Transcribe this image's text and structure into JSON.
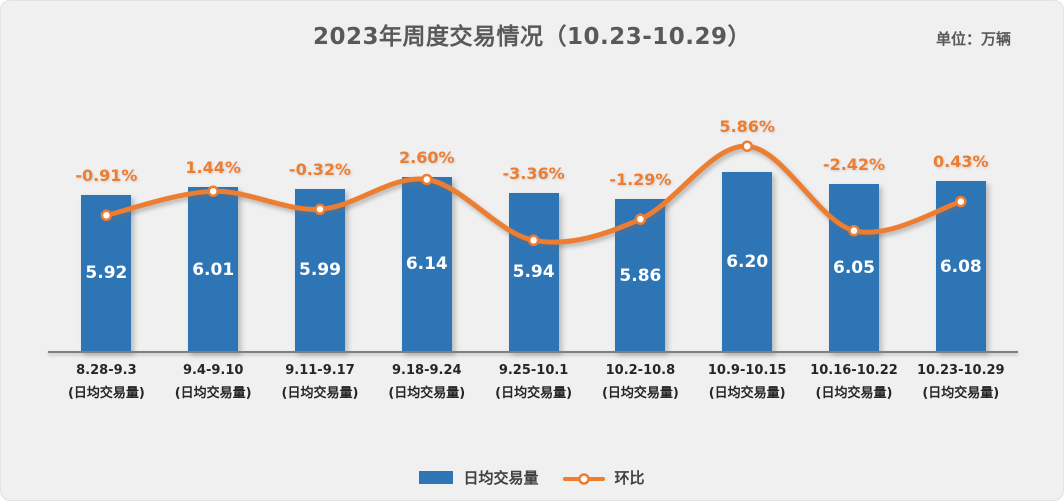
{
  "title": "2023年周度交易情况（10.23-10.29）",
  "unit_label": "单位：万辆",
  "colors": {
    "background": "#F0F0F1",
    "bar": "#2E75B6",
    "line": "#ED7D31",
    "percent_label": "#ED7D31",
    "bar_value_label": "#FFFFFF",
    "title_text": "#595959",
    "axis_line": "#7F7F7F",
    "tick_text": "#262626"
  },
  "legend": {
    "position": "bottom",
    "items": [
      {
        "label": "日均交易量",
        "marker": "bar"
      },
      {
        "label": "环比",
        "marker": "line-dot"
      }
    ]
  },
  "chart_data": {
    "type": "bar",
    "combo": "bar+line",
    "title": "2023年周度交易情况（10.23-10.29）",
    "unit": "万辆",
    "categories": [
      "8.28-9.3",
      "9.4-9.10",
      "9.11-9.17",
      "9.18-9.24",
      "9.25-10.1",
      "10.2-10.8",
      "10.9-10.15",
      "10.16-10.22",
      "10.23-10.29"
    ],
    "category_sublabel": "(日均交易量)",
    "grid": "off",
    "series": [
      {
        "name": "日均交易量",
        "type": "bar",
        "unit": "万辆",
        "values": [
          5.92,
          6.01,
          5.99,
          6.14,
          5.94,
          5.86,
          6.2,
          6.05,
          6.08
        ],
        "value_labels": [
          "5.92",
          "6.01",
          "5.99",
          "6.14",
          "5.94",
          "5.86",
          "6.20",
          "6.05",
          "6.08"
        ]
      },
      {
        "name": "环比",
        "type": "line",
        "values_percent": [
          -0.91,
          1.44,
          -0.32,
          2.6,
          -3.36,
          -1.29,
          5.86,
          -2.42,
          0.43
        ],
        "value_labels": [
          "-0.91%",
          "1.44%",
          "-0.32%",
          "2.60%",
          "-3.36%",
          "-1.29%",
          "5.86%",
          "-2.42%",
          "0.43%"
        ]
      }
    ]
  }
}
